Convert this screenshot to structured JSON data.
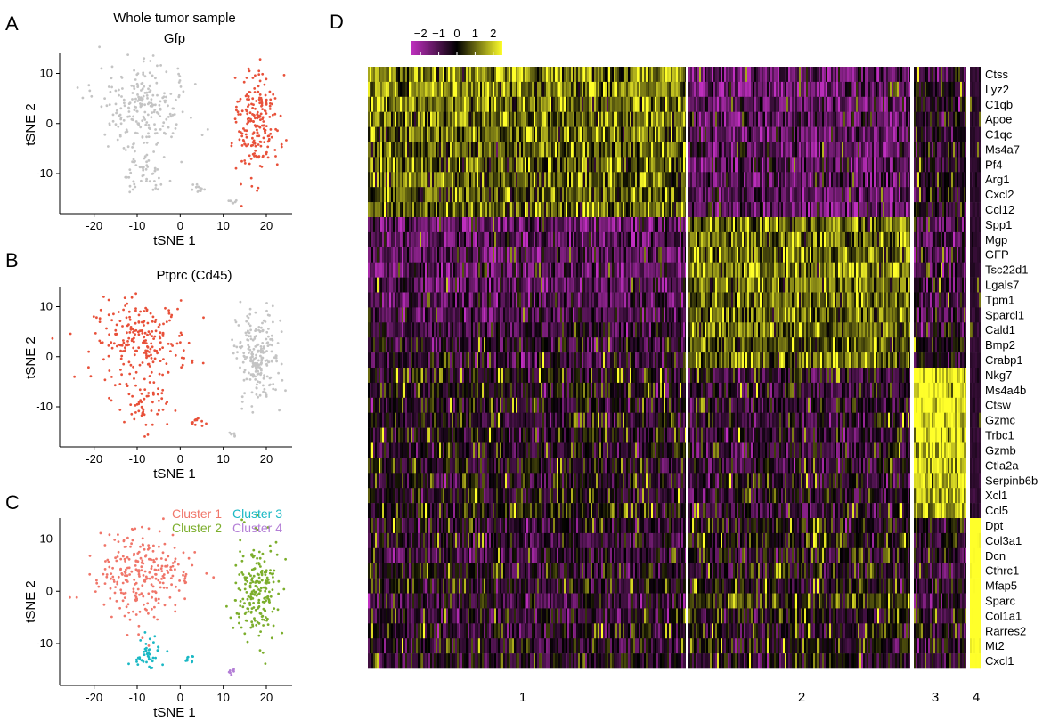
{
  "panel_labels": [
    "A",
    "B",
    "C",
    "D"
  ],
  "figure_title": "Whole tumor sample",
  "colors": {
    "highlight": "#e8513a",
    "background_point": "#c4c4c4",
    "cluster1": "#f0766a",
    "cluster2": "#7cae2c",
    "cluster3": "#1ab8c4",
    "cluster4": "#b37ed6",
    "heat_low": "#bf2fbf",
    "heat_mid": "#000000",
    "heat_high": "#ffff2a"
  },
  "chart_data": [
    {
      "type": "scatter",
      "panel": "A",
      "title": "Gfp",
      "xlabel": "tSNE 1",
      "ylabel": "tSNE 2",
      "xticks": [
        "-20",
        "-10",
        "0",
        "10",
        "20"
      ],
      "yticks": [
        "10",
        "0",
        "-10"
      ],
      "xlim": [
        -28,
        26
      ],
      "ylim": [
        -18,
        14
      ],
      "series": [
        {
          "color": "#c4c4c4",
          "regions": [
            {
              "cx": -9,
              "cy": 3,
              "rx": 11,
              "ry": 8,
              "n": 230
            },
            {
              "cx": -8,
              "cy": -10,
              "rx": 5,
              "ry": 5,
              "n": 50
            },
            {
              "cx": 4,
              "cy": -13,
              "rx": 1.5,
              "ry": 1,
              "n": 12
            },
            {
              "cx": 12,
              "cy": -15.5,
              "rx": 1,
              "ry": 0.6,
              "n": 6
            }
          ]
        },
        {
          "color": "#e8513a",
          "regions": [
            {
              "cx": 18,
              "cy": 0,
              "rx": 5,
              "ry": 10,
              "n": 210
            }
          ]
        }
      ]
    },
    {
      "type": "scatter",
      "panel": "B",
      "title": "Ptprc (Cd45)",
      "xlabel": "tSNE 1",
      "ylabel": "tSNE 2",
      "xticks": [
        "-20",
        "-10",
        "0",
        "10",
        "20"
      ],
      "yticks": [
        "10",
        "0",
        "-10"
      ],
      "xlim": [
        -28,
        26
      ],
      "ylim": [
        -18,
        14
      ],
      "series": [
        {
          "color": "#c4c4c4",
          "regions": [
            {
              "cx": 18,
              "cy": 0,
              "rx": 5,
              "ry": 10,
              "n": 210
            },
            {
              "cx": 12,
              "cy": -15.5,
              "rx": 1,
              "ry": 0.6,
              "n": 6
            }
          ]
        },
        {
          "color": "#e8513a",
          "regions": [
            {
              "cx": -9,
              "cy": 3,
              "rx": 11,
              "ry": 8,
              "n": 230
            },
            {
              "cx": -8,
              "cy": -10,
              "rx": 5,
              "ry": 5,
              "n": 50
            },
            {
              "cx": 4,
              "cy": -13,
              "rx": 1.5,
              "ry": 1,
              "n": 12
            }
          ]
        }
      ]
    },
    {
      "type": "scatter",
      "panel": "C",
      "title": "",
      "xlabel": "tSNE 1",
      "ylabel": "tSNE 2",
      "xticks": [
        "-20",
        "-10",
        "0",
        "10",
        "20"
      ],
      "yticks": [
        "10",
        "0",
        "-10"
      ],
      "xlim": [
        -28,
        26
      ],
      "ylim": [
        -18,
        14
      ],
      "legend": [
        "Cluster 1",
        "Cluster 2",
        "Cluster 3",
        "Cluster 4"
      ],
      "series": [
        {
          "name": "Cluster 1",
          "color": "#f0766a",
          "regions": [
            {
              "cx": -9,
              "cy": 3,
              "rx": 11,
              "ry": 8,
              "n": 260
            }
          ]
        },
        {
          "name": "Cluster 2",
          "color": "#7cae2c",
          "regions": [
            {
              "cx": 18,
              "cy": 0,
              "rx": 5,
              "ry": 10,
              "n": 210
            }
          ]
        },
        {
          "name": "Cluster 3",
          "color": "#1ab8c4",
          "regions": [
            {
              "cx": -7,
              "cy": -12,
              "rx": 4,
              "ry": 3.5,
              "n": 45
            },
            {
              "cx": 2,
              "cy": -13,
              "rx": 1.2,
              "ry": 0.8,
              "n": 10
            }
          ]
        },
        {
          "name": "Cluster 4",
          "color": "#b37ed6",
          "regions": [
            {
              "cx": 12,
              "cy": -15.5,
              "rx": 1,
              "ry": 0.6,
              "n": 7
            }
          ]
        }
      ]
    },
    {
      "type": "heatmap",
      "panel": "D",
      "colorbar_ticks": [
        "−2",
        "−1",
        "0",
        "1",
        "2"
      ],
      "colorbar_range": [
        -2.5,
        2.5
      ],
      "columns": [
        "1",
        "2",
        "3",
        "4"
      ],
      "genes": [
        "Ctss",
        "Lyz2",
        "C1qb",
        "Apoe",
        "C1qc",
        "Ms4a7",
        "Pf4",
        "Arg1",
        "Cxcl2",
        "Ccl12",
        "Spp1",
        "Mgp",
        "GFP",
        "Tsc22d1",
        "Lgals7",
        "Tpm1",
        "Sparcl1",
        "Cald1",
        "Bmp2",
        "Crabp1",
        "Nkg7",
        "Ms4a4b",
        "Ctsw",
        "Gzmc",
        "Trbc1",
        "Gzmb",
        "Ctla2a",
        "Serpinb6b",
        "Xcl1",
        "Ccl5",
        "Dpt",
        "Col3a1",
        "Dcn",
        "Cthrc1",
        "Mfap5",
        "Sparc",
        "Col1a1",
        "Rarres2",
        "Mt2",
        "Cxcl1"
      ],
      "mean_expression": [
        [
          1.2,
          -1.4,
          -0.5,
          -0.6
        ],
        [
          1.2,
          -1.4,
          -0.4,
          -0.6
        ],
        [
          1.0,
          -1.3,
          -0.4,
          -0.6
        ],
        [
          1.0,
          -1.3,
          -0.4,
          -0.6
        ],
        [
          1.0,
          -1.3,
          -0.4,
          -0.6
        ],
        [
          0.9,
          -1.2,
          -0.4,
          -0.6
        ],
        [
          0.9,
          -1.2,
          -0.4,
          -0.6
        ],
        [
          0.8,
          -1.2,
          -0.4,
          -0.6
        ],
        [
          0.8,
          -1.2,
          -0.5,
          -0.6
        ],
        [
          0.9,
          -1.3,
          -0.5,
          -0.6
        ],
        [
          -1.3,
          1.0,
          -0.8,
          -0.6
        ],
        [
          -1.2,
          1.0,
          -0.8,
          -0.6
        ],
        [
          -1.2,
          1.1,
          -0.8,
          -0.6
        ],
        [
          -1.3,
          1.1,
          -0.8,
          -0.6
        ],
        [
          -1.2,
          1.0,
          -0.8,
          -0.6
        ],
        [
          -1.0,
          1.0,
          -0.7,
          -0.6
        ],
        [
          -1.0,
          0.9,
          -0.8,
          -0.6
        ],
        [
          -0.8,
          0.9,
          -0.5,
          -0.6
        ],
        [
          -0.5,
          0.8,
          -0.2,
          -0.6
        ],
        [
          -0.6,
          0.8,
          -0.4,
          -0.6
        ],
        [
          -0.2,
          -0.6,
          2.3,
          -0.6
        ],
        [
          -0.2,
          -0.6,
          2.3,
          -0.6
        ],
        [
          -0.3,
          -0.6,
          2.3,
          -0.6
        ],
        [
          -0.4,
          -0.6,
          2.2,
          -0.6
        ],
        [
          -0.3,
          -0.6,
          2.2,
          -0.6
        ],
        [
          -0.4,
          -0.6,
          2.1,
          -0.6
        ],
        [
          -0.3,
          -0.6,
          2.1,
          -0.6
        ],
        [
          -0.4,
          -0.6,
          2.0,
          -0.6
        ],
        [
          -0.3,
          -0.5,
          1.8,
          -0.6
        ],
        [
          0.0,
          -0.7,
          1.6,
          -0.6
        ],
        [
          -0.5,
          -0.2,
          -0.5,
          2.6
        ],
        [
          -0.6,
          0.0,
          -0.5,
          2.6
        ],
        [
          -0.7,
          -0.2,
          -0.5,
          2.6
        ],
        [
          -0.3,
          -0.2,
          -0.5,
          2.6
        ],
        [
          -0.4,
          -0.3,
          -0.5,
          2.6
        ],
        [
          -0.8,
          0.3,
          -0.5,
          2.6
        ],
        [
          -0.5,
          -0.1,
          -0.5,
          2.6
        ],
        [
          -0.4,
          -0.2,
          -0.5,
          2.6
        ],
        [
          -0.4,
          -0.2,
          -0.5,
          2.6
        ],
        [
          -0.4,
          -0.3,
          -0.5,
          2.6
        ]
      ]
    }
  ]
}
